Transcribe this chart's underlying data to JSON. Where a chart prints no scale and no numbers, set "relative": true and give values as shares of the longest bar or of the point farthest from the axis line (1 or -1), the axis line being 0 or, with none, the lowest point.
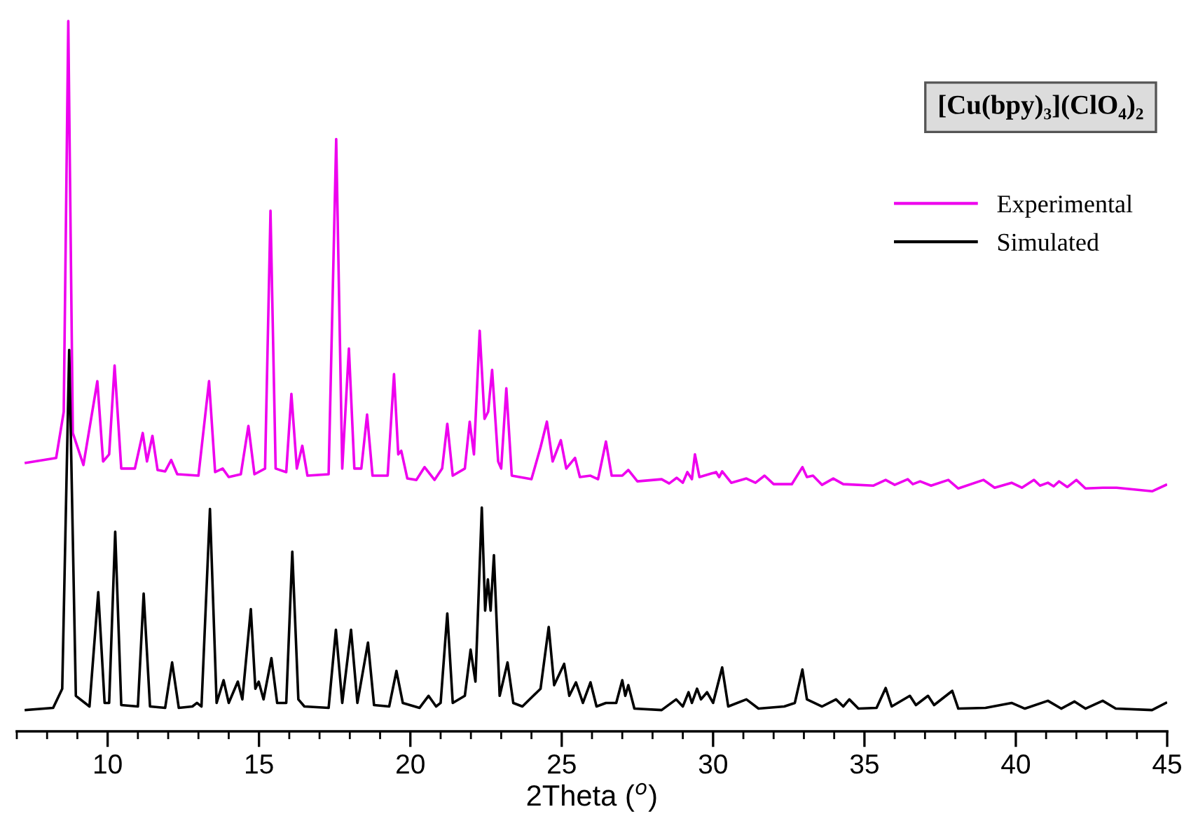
{
  "chart_data": {
    "type": "line",
    "relative": true,
    "title": "[Cu(bpy)₃](ClO₄)₂",
    "xlabel": "2Theta ($^{o}$)",
    "xlim": [
      7,
      45
    ],
    "xticks": [
      {
        "value": 7,
        "label": null
      },
      {
        "value": 8,
        "label": null
      },
      {
        "value": 9,
        "label": null
      },
      10,
      {
        "value": 11,
        "label": null
      },
      {
        "value": 12,
        "label": null
      },
      {
        "value": 13,
        "label": null
      },
      {
        "value": 14,
        "label": null
      },
      15,
      {
        "value": 16,
        "label": null
      },
      {
        "value": 17,
        "label": null
      },
      {
        "value": 18,
        "label": null
      },
      {
        "value": 19,
        "label": null
      },
      20,
      {
        "value": 21,
        "label": null
      },
      {
        "value": 22,
        "label": null
      },
      {
        "value": 23,
        "label": null
      },
      {
        "value": 24,
        "label": null
      },
      25,
      {
        "value": 26,
        "label": null
      },
      {
        "value": 27,
        "label": null
      },
      {
        "value": 28,
        "label": null
      },
      {
        "value": 29,
        "label": null
      },
      30,
      {
        "value": 31,
        "label": null
      },
      {
        "value": 32,
        "label": null
      },
      {
        "value": 33,
        "label": null
      },
      {
        "value": 34,
        "label": null
      },
      35,
      {
        "value": 36,
        "label": null
      },
      {
        "value": 37,
        "label": null
      },
      {
        "value": 38,
        "label": null
      },
      {
        "value": 39,
        "label": null
      },
      40,
      {
        "value": 41,
        "label": null
      },
      {
        "value": 42,
        "label": null
      },
      {
        "value": 43,
        "label": null
      },
      {
        "value": 44,
        "label": null
      },
      45
    ],
    "tick_labels": "x",
    "legend": "top right",
    "grid": false,
    "line_style": "solid",
    "marker": "none",
    "series": [
      {
        "name": "Experimental",
        "color": "#ee00ee",
        "x": [
          7.3,
          8.3,
          8.55,
          8.7,
          8.85,
          9.2,
          9.66,
          9.85,
          10.05,
          10.23,
          10.45,
          10.9,
          11.16,
          11.3,
          11.48,
          11.65,
          11.9,
          12.1,
          12.3,
          13.0,
          13.35,
          13.55,
          13.8,
          14.0,
          14.4,
          14.65,
          14.85,
          15.2,
          15.38,
          15.55,
          15.9,
          16.07,
          16.25,
          16.43,
          16.6,
          17.3,
          17.55,
          17.75,
          17.97,
          18.15,
          18.38,
          18.57,
          18.75,
          19.25,
          19.46,
          19.6,
          19.7,
          19.9,
          20.2,
          20.47,
          20.8,
          21.05,
          21.22,
          21.4,
          21.8,
          21.96,
          22.1,
          22.29,
          22.45,
          22.57,
          22.7,
          22.9,
          23.0,
          23.17,
          23.35,
          24.0,
          24.3,
          24.51,
          24.7,
          24.97,
          25.15,
          25.44,
          25.6,
          25.95,
          26.2,
          26.46,
          26.65,
          27.0,
          27.2,
          27.5,
          28.3,
          28.55,
          28.8,
          29.0,
          29.15,
          29.3,
          29.4,
          29.55,
          30.1,
          30.2,
          30.3,
          30.6,
          31.1,
          31.4,
          31.7,
          32.0,
          32.6,
          32.95,
          33.1,
          33.3,
          33.6,
          33.97,
          34.3,
          35.3,
          35.7,
          36.0,
          36.43,
          36.6,
          36.84,
          37.2,
          37.77,
          38.1,
          38.93,
          39.3,
          39.86,
          40.2,
          40.6,
          40.8,
          41.06,
          41.25,
          41.43,
          41.7,
          42.0,
          42.3,
          42.87,
          43.33,
          44.03,
          44.5,
          44.96
        ],
        "values": [
          0.378,
          0.385,
          0.45,
          1.0,
          0.42,
          0.375,
          0.493,
          0.38,
          0.39,
          0.515,
          0.37,
          0.37,
          0.42,
          0.38,
          0.416,
          0.368,
          0.366,
          0.382,
          0.362,
          0.36,
          0.493,
          0.365,
          0.37,
          0.358,
          0.362,
          0.43,
          0.362,
          0.37,
          0.733,
          0.37,
          0.365,
          0.475,
          0.37,
          0.402,
          0.36,
          0.362,
          0.834,
          0.37,
          0.539,
          0.37,
          0.37,
          0.446,
          0.36,
          0.36,
          0.503,
          0.39,
          0.395,
          0.356,
          0.354,
          0.372,
          0.354,
          0.37,
          0.433,
          0.36,
          0.37,
          0.436,
          0.39,
          0.564,
          0.44,
          0.45,
          0.509,
          0.38,
          0.37,
          0.483,
          0.36,
          0.355,
          0.4,
          0.436,
          0.38,
          0.41,
          0.37,
          0.385,
          0.358,
          0.36,
          0.355,
          0.408,
          0.36,
          0.36,
          0.368,
          0.352,
          0.355,
          0.349,
          0.357,
          0.35,
          0.365,
          0.355,
          0.39,
          0.358,
          0.365,
          0.358,
          0.366,
          0.35,
          0.356,
          0.35,
          0.36,
          0.348,
          0.348,
          0.372,
          0.358,
          0.36,
          0.347,
          0.356,
          0.348,
          0.346,
          0.354,
          0.347,
          0.355,
          0.348,
          0.352,
          0.346,
          0.354,
          0.342,
          0.354,
          0.343,
          0.35,
          0.343,
          0.354,
          0.346,
          0.35,
          0.345,
          0.352,
          0.344,
          0.354,
          0.342,
          0.343,
          0.343,
          0.34,
          0.338,
          0.347
        ]
      },
      {
        "name": "Simulated",
        "color": "#000000",
        "x": [
          7.3,
          8.2,
          8.5,
          8.73,
          8.95,
          9.4,
          9.69,
          9.9,
          10.05,
          10.25,
          10.45,
          11.0,
          11.19,
          11.4,
          11.9,
          12.13,
          12.35,
          12.8,
          12.95,
          13.1,
          13.38,
          13.6,
          13.83,
          14.0,
          14.3,
          14.45,
          14.73,
          14.88,
          14.99,
          15.15,
          15.41,
          15.6,
          15.9,
          16.1,
          16.3,
          16.5,
          17.3,
          17.54,
          17.75,
          18.04,
          18.25,
          18.6,
          18.8,
          19.3,
          19.54,
          19.75,
          20.3,
          20.6,
          20.85,
          21.0,
          21.22,
          21.4,
          21.8,
          21.99,
          22.15,
          22.36,
          22.47,
          22.56,
          22.65,
          22.76,
          22.95,
          23.21,
          23.4,
          23.7,
          24.3,
          24.57,
          24.75,
          25.08,
          25.25,
          25.47,
          25.7,
          25.95,
          26.15,
          26.46,
          26.8,
          27.0,
          27.1,
          27.2,
          27.4,
          28.3,
          28.78,
          29.0,
          29.19,
          29.3,
          29.47,
          29.6,
          29.8,
          30.0,
          30.3,
          30.5,
          31.1,
          31.5,
          32.35,
          32.7,
          32.95,
          33.1,
          33.6,
          34.06,
          34.3,
          34.5,
          34.8,
          35.4,
          35.7,
          35.9,
          36.5,
          36.7,
          37.1,
          37.3,
          37.9,
          38.1,
          39.0,
          39.86,
          40.3,
          41.06,
          41.5,
          41.94,
          42.3,
          42.87,
          43.3,
          44.5,
          44.96
        ],
        "values": [
          0.03,
          0.033,
          0.06,
          0.537,
          0.05,
          0.035,
          0.196,
          0.04,
          0.04,
          0.281,
          0.037,
          0.035,
          0.194,
          0.035,
          0.033,
          0.097,
          0.033,
          0.035,
          0.04,
          0.035,
          0.313,
          0.04,
          0.072,
          0.04,
          0.07,
          0.045,
          0.172,
          0.06,
          0.07,
          0.045,
          0.103,
          0.04,
          0.04,
          0.253,
          0.045,
          0.035,
          0.033,
          0.143,
          0.04,
          0.143,
          0.04,
          0.125,
          0.037,
          0.035,
          0.085,
          0.04,
          0.033,
          0.05,
          0.035,
          0.04,
          0.166,
          0.04,
          0.05,
          0.115,
          0.07,
          0.315,
          0.17,
          0.214,
          0.17,
          0.248,
          0.05,
          0.097,
          0.04,
          0.035,
          0.06,
          0.147,
          0.065,
          0.095,
          0.05,
          0.069,
          0.04,
          0.069,
          0.035,
          0.04,
          0.04,
          0.072,
          0.05,
          0.065,
          0.032,
          0.03,
          0.045,
          0.035,
          0.055,
          0.04,
          0.06,
          0.045,
          0.055,
          0.04,
          0.09,
          0.035,
          0.045,
          0.032,
          0.035,
          0.04,
          0.087,
          0.045,
          0.035,
          0.045,
          0.035,
          0.045,
          0.032,
          0.033,
          0.061,
          0.035,
          0.05,
          0.037,
          0.05,
          0.037,
          0.057,
          0.032,
          0.033,
          0.04,
          0.032,
          0.043,
          0.032,
          0.042,
          0.032,
          0.043,
          0.032,
          0.03,
          0.04
        ]
      }
    ]
  }
}
